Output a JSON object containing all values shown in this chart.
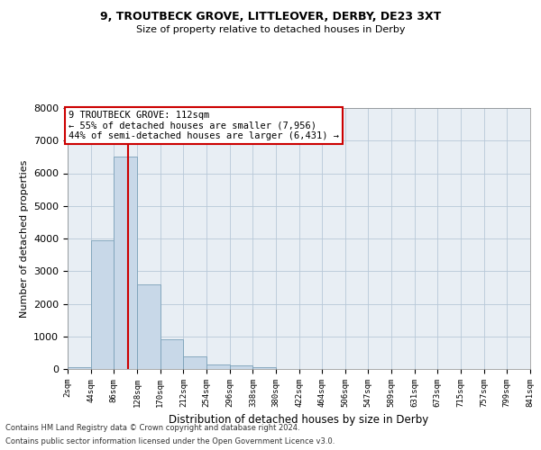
{
  "title1": "9, TROUTBECK GROVE, LITTLEOVER, DERBY, DE23 3XT",
  "title2": "Size of property relative to detached houses in Derby",
  "xlabel": "Distribution of detached houses by size in Derby",
  "ylabel": "Number of detached properties",
  "footer1": "Contains HM Land Registry data © Crown copyright and database right 2024.",
  "footer2": "Contains public sector information licensed under the Open Government Licence v3.0.",
  "annotation_line1": "9 TROUTBECK GROVE: 112sqm",
  "annotation_line2": "← 55% of detached houses are smaller (7,956)",
  "annotation_line3": "44% of semi-detached houses are larger (6,431) →",
  "property_size_sqm": 112,
  "bin_edges": [
    2,
    44,
    86,
    128,
    170,
    212,
    254,
    296,
    338,
    380,
    422,
    464,
    506,
    547,
    589,
    631,
    673,
    715,
    757,
    799,
    841
  ],
  "bin_labels": [
    "2sqm",
    "44sqm",
    "86sqm",
    "128sqm",
    "170sqm",
    "212sqm",
    "254sqm",
    "296sqm",
    "338sqm",
    "380sqm",
    "422sqm",
    "464sqm",
    "506sqm",
    "547sqm",
    "589sqm",
    "631sqm",
    "673sqm",
    "715sqm",
    "757sqm",
    "799sqm",
    "841sqm"
  ],
  "bar_values": [
    50,
    3950,
    6500,
    2600,
    900,
    380,
    130,
    100,
    60,
    0,
    0,
    0,
    0,
    0,
    0,
    0,
    0,
    0,
    0,
    0
  ],
  "bar_color": "#c8d8e8",
  "bar_edge_color": "#7aa0b8",
  "vline_color": "#cc0000",
  "vline_x": 112,
  "ylim": [
    0,
    8000
  ],
  "yticks": [
    0,
    1000,
    2000,
    3000,
    4000,
    5000,
    6000,
    7000,
    8000
  ],
  "grid_color": "#b8c8d8",
  "annotation_box_color": "#cc0000",
  "bg_color": "#e8eef4"
}
